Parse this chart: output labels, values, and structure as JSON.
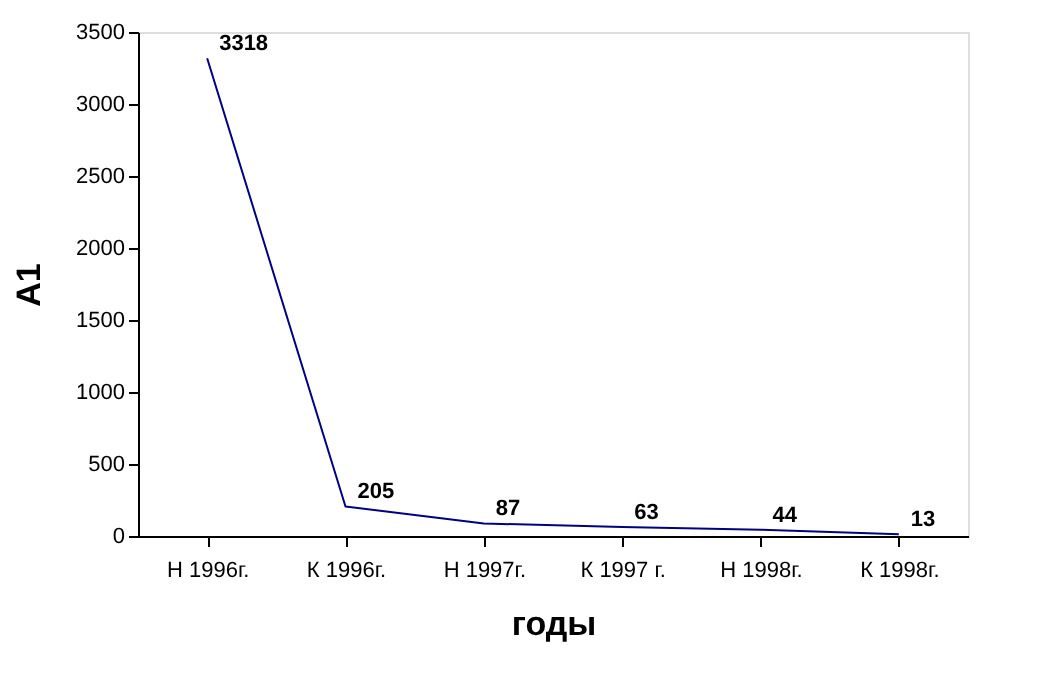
{
  "chart_data": {
    "type": "line",
    "xlabel": "годы",
    "ylabel": "А1",
    "categories": [
      "Н 1996г.",
      "К 1996г.",
      "Н 1997г.",
      "К 1997 г.",
      "Н 1998г.",
      "К 1998г."
    ],
    "series": [
      {
        "color": "#000080",
        "values": [
          3318,
          205,
          87,
          63,
          44,
          13
        ]
      }
    ],
    "ylim": [
      0,
      3500
    ],
    "yticks": [
      0,
      500,
      1000,
      1500,
      2000,
      2500,
      3000,
      3500
    ],
    "grid": false,
    "legend": false,
    "marker": "none",
    "data_labels": true
  }
}
